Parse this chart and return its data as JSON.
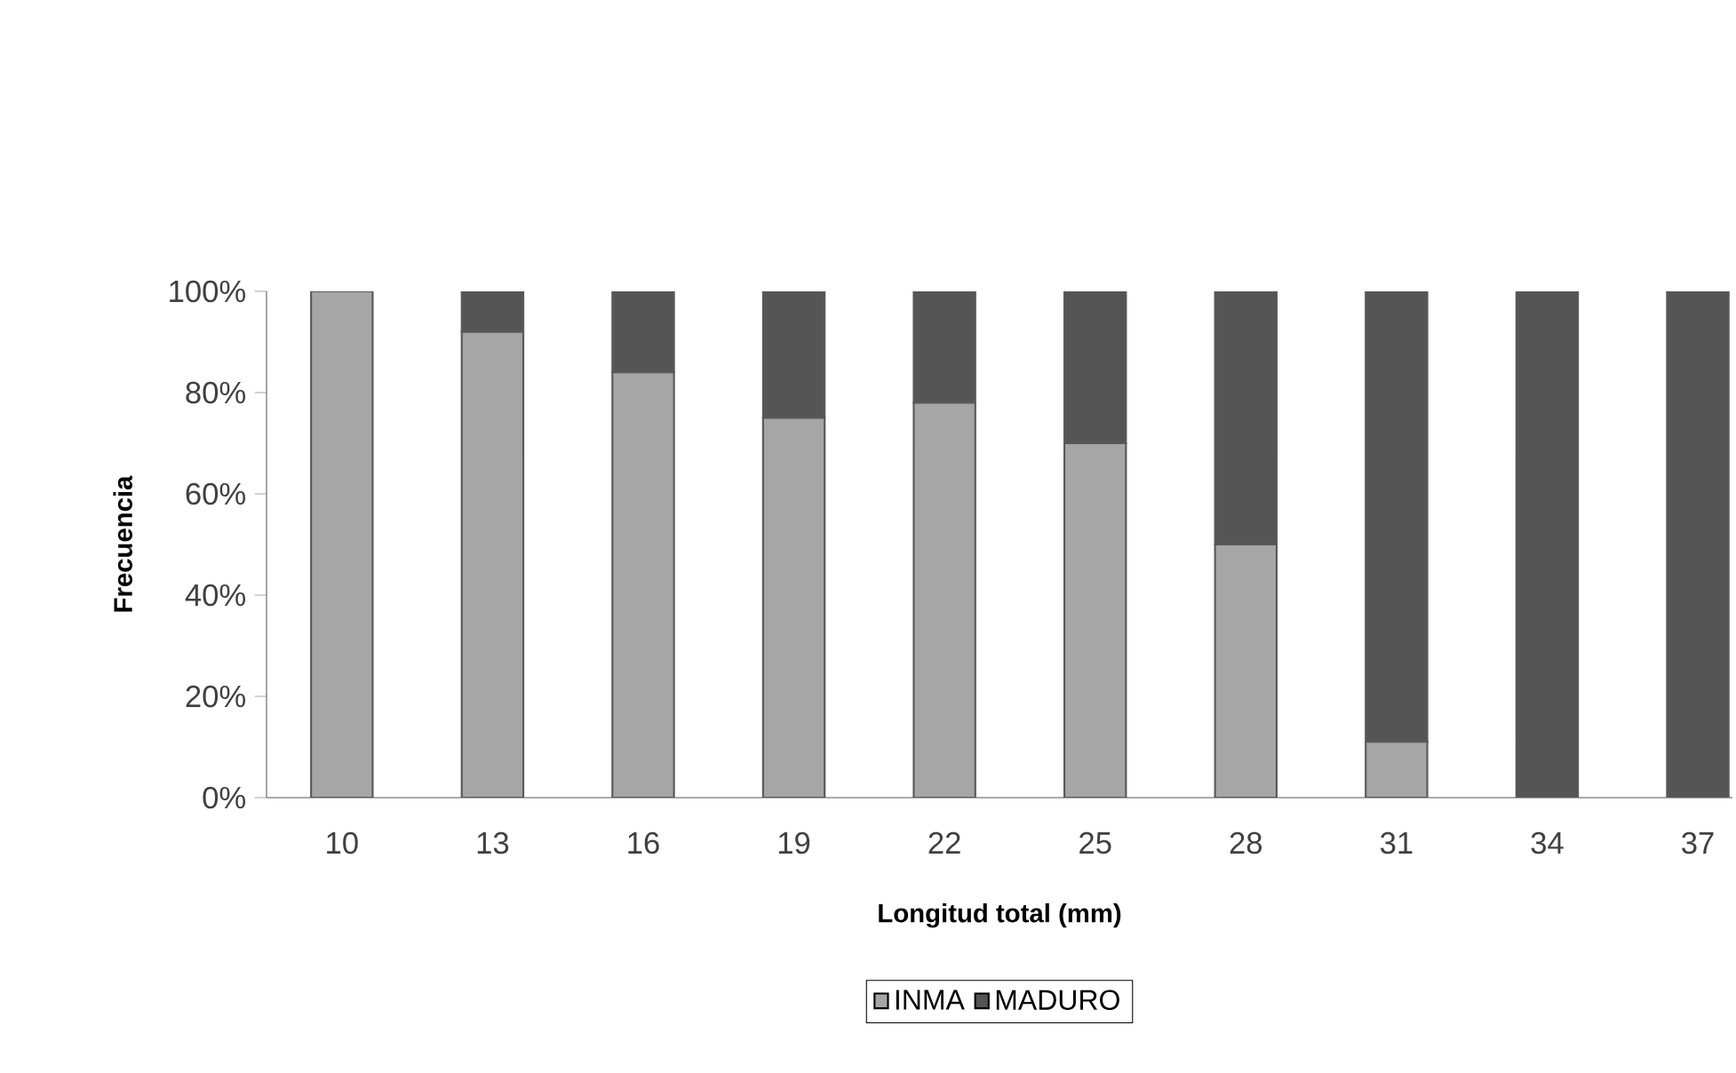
{
  "chart_data": {
    "type": "bar",
    "stacked": true,
    "xlabel": "Longitud total (mm)",
    "ylabel": "Frecuencia",
    "categories": [
      "10",
      "13",
      "16",
      "19",
      "22",
      "25",
      "28",
      "31",
      "34",
      "37"
    ],
    "series": [
      {
        "name": "INMA",
        "color": "#a6a6a6",
        "values": [
          100,
          92,
          84,
          75,
          78,
          70,
          50,
          11,
          0,
          0
        ]
      },
      {
        "name": "MADURO",
        "color": "#555555",
        "values": [
          0,
          8,
          16,
          25,
          22,
          30,
          50,
          89,
          100,
          100
        ]
      }
    ],
    "ylim": [
      0,
      100
    ],
    "yticks": [
      {
        "value": 0,
        "label": "0%"
      },
      {
        "value": 20,
        "label": "20%"
      },
      {
        "value": 40,
        "label": "40%"
      },
      {
        "value": 60,
        "label": "60%"
      },
      {
        "value": 80,
        "label": "80%"
      },
      {
        "value": 100,
        "label": "100%"
      }
    ],
    "grid": false,
    "legend": "bottom"
  }
}
